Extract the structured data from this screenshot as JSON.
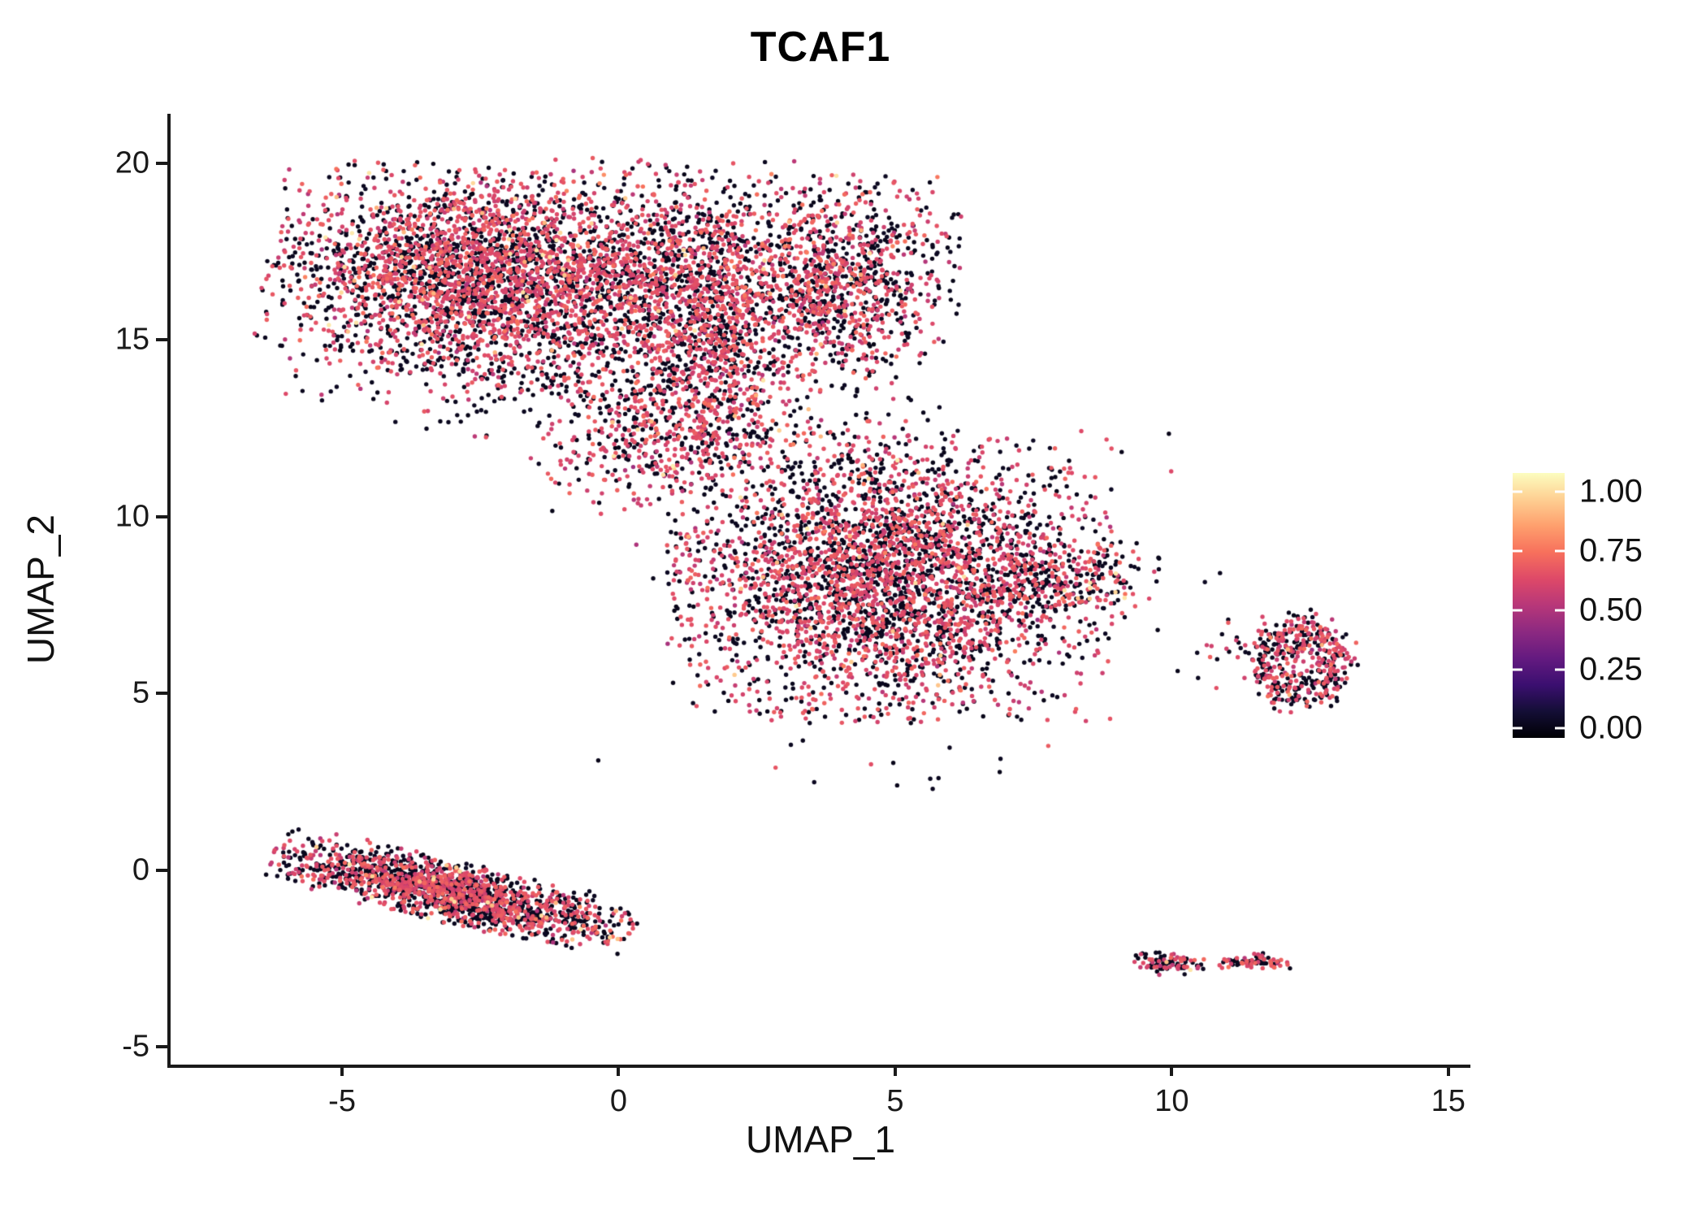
{
  "figure": {
    "background": "#ffffff",
    "axis_color": "#1a1a1a",
    "text_color": "#111111"
  },
  "chart_data": {
    "type": "scatter",
    "title": "TCAF1",
    "xlabel": "UMAP_1",
    "ylabel": "UMAP_2",
    "xlim": [
      -8.1,
      15.4
    ],
    "ylim": [
      -5.5,
      21.4
    ],
    "grid": false,
    "legend_position": "right",
    "point_radius_px": 2.7,
    "seed": 42,
    "xticks": {
      "values": [
        -5,
        0,
        5,
        10,
        15
      ],
      "labels": [
        "-5",
        "0",
        "5",
        "10",
        "15"
      ]
    },
    "yticks": {
      "values": [
        -5,
        0,
        5,
        10,
        15,
        20
      ],
      "labels": [
        "-5",
        "0",
        "5",
        "10",
        "15",
        "20"
      ]
    },
    "colorbar": {
      "title": "",
      "bar_vmin": -0.04,
      "bar_vmax": 1.08,
      "ticks": [
        {
          "value": 1.0,
          "label": "1.00"
        },
        {
          "value": 0.75,
          "label": "0.75"
        },
        {
          "value": 0.5,
          "label": "0.50"
        },
        {
          "value": 0.25,
          "label": "0.25"
        },
        {
          "value": 0.0,
          "label": "0.00"
        }
      ],
      "stops": [
        {
          "t": 0.0,
          "c": "#000004"
        },
        {
          "t": 0.1,
          "c": "#140e36"
        },
        {
          "t": 0.2,
          "c": "#3b0f70"
        },
        {
          "t": 0.3,
          "c": "#641a80"
        },
        {
          "t": 0.4,
          "c": "#8c2981"
        },
        {
          "t": 0.5,
          "c": "#b73779"
        },
        {
          "t": 0.6,
          "c": "#de4968"
        },
        {
          "t": 0.7,
          "c": "#f7705c"
        },
        {
          "t": 0.8,
          "c": "#fe9f6d"
        },
        {
          "t": 0.9,
          "c": "#fecf92"
        },
        {
          "t": 1.0,
          "c": "#fcfdbf"
        }
      ]
    },
    "value_model": {
      "zero_span": 0.03,
      "hi_frac": 0.012,
      "hi_min": 0.88,
      "hi_span": 0.17,
      "mid_mean": 0.63,
      "mid_sd": 0.055,
      "mid_min": 0.4,
      "mid_max": 0.82
    },
    "clusters": [
      {
        "name": "top-left-main",
        "type": "gauss",
        "n": 2800,
        "cx": -2.7,
        "cy": 16.9,
        "sx": 1.6,
        "sy": 1.3,
        "rot": -8,
        "zero_frac": 0.42
      },
      {
        "name": "top-mid",
        "type": "gauss",
        "n": 1300,
        "cx": 0.7,
        "cy": 16.7,
        "sx": 1.3,
        "sy": 1.5,
        "rot": 0,
        "zero_frac": 0.47
      },
      {
        "name": "top-streak",
        "type": "gauss",
        "n": 520,
        "cx": 1.8,
        "cy": 15.2,
        "sx": 0.55,
        "sy": 1.7,
        "rot": 0,
        "zero_frac": 0.33
      },
      {
        "name": "top-right-lobe",
        "type": "gauss",
        "n": 1150,
        "cx": 3.9,
        "cy": 16.6,
        "sx": 1.0,
        "sy": 1.35,
        "rot": 0,
        "zero_frac": 0.46
      },
      {
        "name": "top-lower-fringe",
        "type": "gauss",
        "n": 270,
        "cx": -1.6,
        "cy": 14.0,
        "sx": 2.1,
        "sy": 0.8,
        "rot": 0,
        "zero_frac": 0.6
      },
      {
        "name": "bridge",
        "type": "gauss",
        "n": 430,
        "cx": 0.9,
        "cy": 12.4,
        "sx": 1.1,
        "sy": 0.75,
        "rot": 35,
        "zero_frac": 0.34
      },
      {
        "name": "bridge-sparse",
        "type": "gauss",
        "n": 170,
        "cx": 2.3,
        "cy": 12.1,
        "sx": 1.7,
        "sy": 1.0,
        "rot": 0,
        "zero_frac": 0.7
      },
      {
        "name": "center-main",
        "type": "gauss",
        "n": 3400,
        "cx": 4.9,
        "cy": 8.3,
        "sx": 1.75,
        "sy": 1.8,
        "rot": 0,
        "zero_frac": 0.43
      },
      {
        "name": "center-right-arm",
        "type": "gauss",
        "n": 230,
        "cx": 8.1,
        "cy": 8.25,
        "sx": 0.75,
        "sy": 0.5,
        "rot": 0,
        "zero_frac": 0.5
      },
      {
        "name": "center-halo",
        "type": "gauss",
        "n": 130,
        "cx": 5.3,
        "cy": 7.2,
        "sx": 2.7,
        "sy": 2.5,
        "rot": 0,
        "zero_frac": 0.65
      },
      {
        "name": "right-ring",
        "type": "ring",
        "n": 430,
        "cx": 12.35,
        "cy": 5.85,
        "r": 0.62,
        "rsd": 0.2,
        "xsc": 1.0,
        "ysc": 1.4,
        "zero_frac": 0.5
      },
      {
        "name": "right-ring-sparse",
        "type": "gauss",
        "n": 45,
        "cx": 11.55,
        "cy": 6.45,
        "sx": 0.55,
        "sy": 0.35,
        "rot": 0,
        "zero_frac": 0.55
      },
      {
        "name": "bottom-left-strip",
        "type": "gauss",
        "n": 1700,
        "cx": -3.0,
        "cy": -0.62,
        "sx": 1.5,
        "sy": 0.38,
        "rot": -20,
        "zero_frac": 0.52
      },
      {
        "name": "bottom-right-dot-a",
        "type": "gauss",
        "n": 90,
        "cx": 10.0,
        "cy": -2.62,
        "sx": 0.3,
        "sy": 0.15,
        "rot": 0,
        "zero_frac": 0.5
      },
      {
        "name": "bottom-right-dot-b",
        "type": "gauss",
        "n": 70,
        "cx": 11.45,
        "cy": -2.58,
        "sx": 0.33,
        "sy": 0.1,
        "rot": 0,
        "zero_frac": 0.5
      }
    ]
  }
}
